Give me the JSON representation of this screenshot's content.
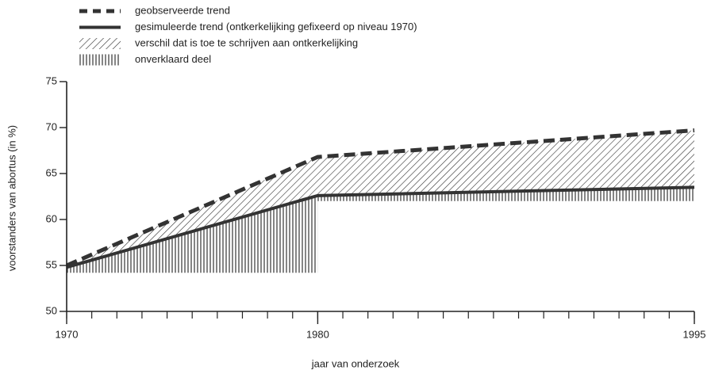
{
  "chart_data": {
    "type": "line",
    "x_label": "jaar van onderzoek",
    "y_label": "voorstanders van abortus (in %)",
    "xlim": [
      1970,
      1995
    ],
    "xticks": [
      1970,
      1980,
      1995
    ],
    "x_minor_step": 1,
    "ylim": [
      50,
      75
    ],
    "yticks": [
      50,
      55,
      60,
      65,
      70,
      75
    ],
    "grid": false,
    "legend": "top-left",
    "series": [
      {
        "name": "geobserveerde trend",
        "color": "#333333",
        "style": "dashed",
        "x": [
          1970,
          1980,
          1995
        ],
        "values": [
          55,
          66.8,
          69.7
        ]
      },
      {
        "name": "gesimuleerde trend (ontkerkelijking gefixeerd op niveau 1970)",
        "color": "#333333",
        "style": "solid",
        "x": [
          1970,
          1980,
          1995
        ],
        "values": [
          54.8,
          62.6,
          63.5
        ]
      },
      {
        "name": "verschil dat is toe te schrijven aan ontkerkelijking",
        "color": "#333333",
        "style": "diagonal-hatch"
      },
      {
        "name": "onverklaard deel",
        "color": "#333333",
        "style": "vertical-hatch",
        "x": [
          1970,
          1980,
          1980,
          1995
        ],
        "values": [
          54.2,
          54.2,
          62,
          62
        ]
      }
    ]
  }
}
